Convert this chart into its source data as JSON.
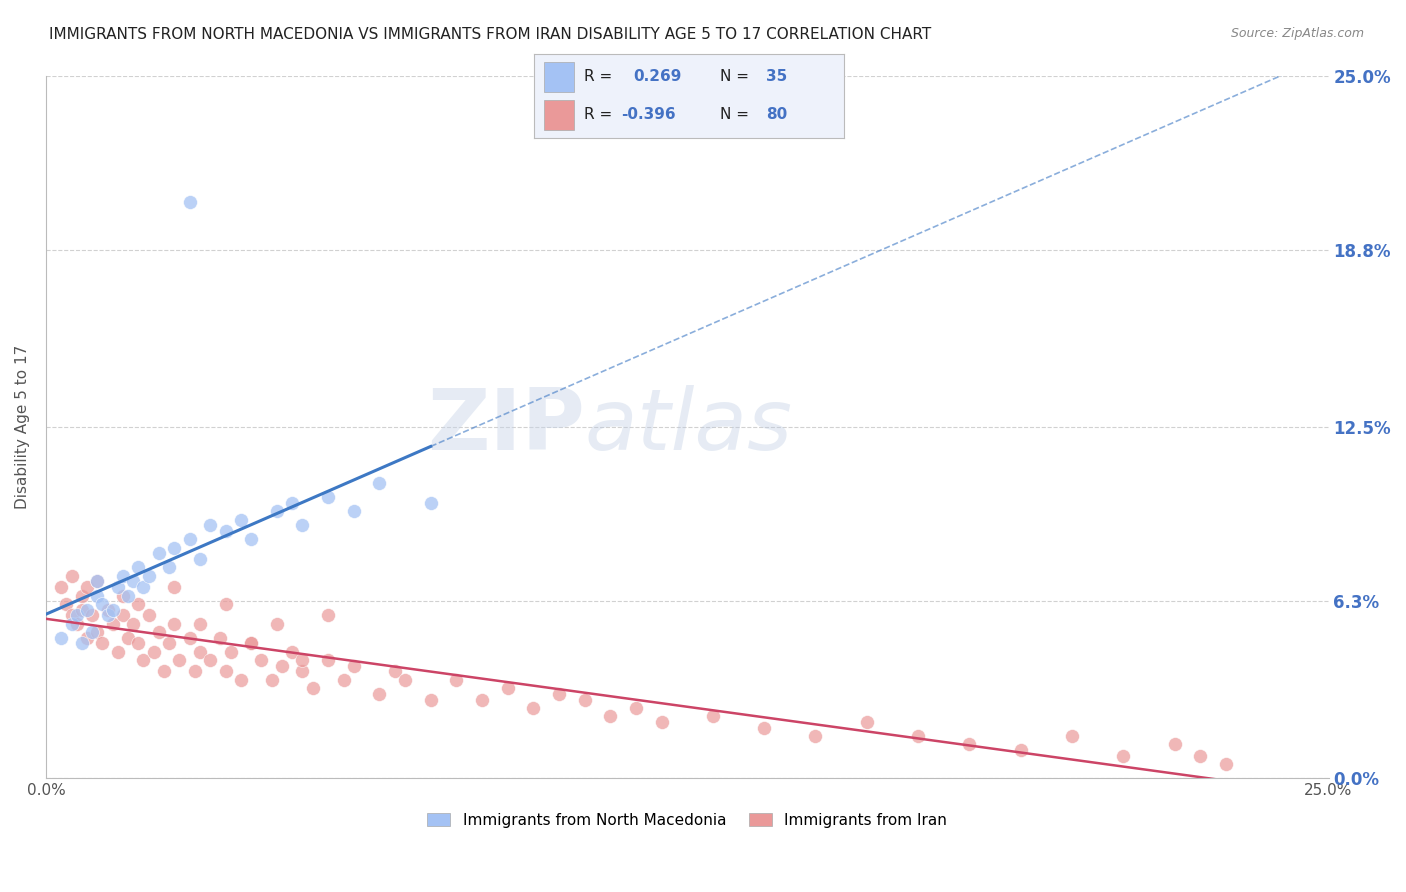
{
  "title": "IMMIGRANTS FROM NORTH MACEDONIA VS IMMIGRANTS FROM IRAN DISABILITY AGE 5 TO 17 CORRELATION CHART",
  "source": "Source: ZipAtlas.com",
  "ylabel": "Disability Age 5 to 17",
  "xlim": [
    0.0,
    0.25
  ],
  "ylim": [
    0.0,
    0.25
  ],
  "ytick_labels": [
    "0.0%",
    "6.3%",
    "12.5%",
    "18.8%",
    "25.0%"
  ],
  "ytick_values": [
    0.0,
    0.063,
    0.125,
    0.188,
    0.25
  ],
  "blue_R": 0.269,
  "blue_N": 35,
  "pink_R": -0.396,
  "pink_N": 80,
  "blue_color": "#a4c2f4",
  "pink_color": "#ea9999",
  "blue_line_color": "#3d78c4",
  "pink_line_color": "#cc4466",
  "background_color": "#ffffff",
  "grid_color": "#cccccc",
  "title_color": "#222222",
  "right_label_color": "#4472c4",
  "blue_scatter_x": [
    0.003,
    0.005,
    0.006,
    0.007,
    0.008,
    0.009,
    0.01,
    0.01,
    0.011,
    0.012,
    0.013,
    0.014,
    0.015,
    0.016,
    0.017,
    0.018,
    0.019,
    0.02,
    0.022,
    0.024,
    0.025,
    0.028,
    0.03,
    0.032,
    0.035,
    0.038,
    0.04,
    0.045,
    0.048,
    0.05,
    0.055,
    0.06,
    0.065,
    0.075,
    0.028
  ],
  "blue_scatter_y": [
    0.05,
    0.055,
    0.058,
    0.048,
    0.06,
    0.052,
    0.065,
    0.07,
    0.062,
    0.058,
    0.06,
    0.068,
    0.072,
    0.065,
    0.07,
    0.075,
    0.068,
    0.072,
    0.08,
    0.075,
    0.082,
    0.085,
    0.078,
    0.09,
    0.088,
    0.092,
    0.085,
    0.095,
    0.098,
    0.09,
    0.1,
    0.095,
    0.105,
    0.098,
    0.205
  ],
  "pink_scatter_x": [
    0.003,
    0.004,
    0.005,
    0.005,
    0.006,
    0.007,
    0.007,
    0.008,
    0.008,
    0.009,
    0.01,
    0.01,
    0.011,
    0.012,
    0.013,
    0.014,
    0.015,
    0.015,
    0.016,
    0.017,
    0.018,
    0.018,
    0.019,
    0.02,
    0.021,
    0.022,
    0.023,
    0.024,
    0.025,
    0.026,
    0.028,
    0.029,
    0.03,
    0.032,
    0.034,
    0.035,
    0.036,
    0.038,
    0.04,
    0.042,
    0.044,
    0.046,
    0.048,
    0.05,
    0.052,
    0.055,
    0.058,
    0.06,
    0.065,
    0.068,
    0.07,
    0.075,
    0.08,
    0.085,
    0.09,
    0.095,
    0.1,
    0.105,
    0.11,
    0.115,
    0.12,
    0.13,
    0.14,
    0.15,
    0.16,
    0.17,
    0.18,
    0.19,
    0.2,
    0.21,
    0.22,
    0.225,
    0.23,
    0.025,
    0.03,
    0.035,
    0.04,
    0.045,
    0.05,
    0.055
  ],
  "pink_scatter_y": [
    0.068,
    0.062,
    0.058,
    0.072,
    0.055,
    0.06,
    0.065,
    0.05,
    0.068,
    0.058,
    0.052,
    0.07,
    0.048,
    0.06,
    0.055,
    0.045,
    0.058,
    0.065,
    0.05,
    0.055,
    0.048,
    0.062,
    0.042,
    0.058,
    0.045,
    0.052,
    0.038,
    0.048,
    0.055,
    0.042,
    0.05,
    0.038,
    0.045,
    0.042,
    0.05,
    0.038,
    0.045,
    0.035,
    0.048,
    0.042,
    0.035,
    0.04,
    0.045,
    0.038,
    0.032,
    0.042,
    0.035,
    0.04,
    0.03,
    0.038,
    0.035,
    0.028,
    0.035,
    0.028,
    0.032,
    0.025,
    0.03,
    0.028,
    0.022,
    0.025,
    0.02,
    0.022,
    0.018,
    0.015,
    0.02,
    0.015,
    0.012,
    0.01,
    0.015,
    0.008,
    0.012,
    0.008,
    0.005,
    0.068,
    0.055,
    0.062,
    0.048,
    0.055,
    0.042,
    0.058
  ],
  "watermark_zip": "ZIP",
  "watermark_atlas": "atlas",
  "legend_face_color": "#eef2fb"
}
